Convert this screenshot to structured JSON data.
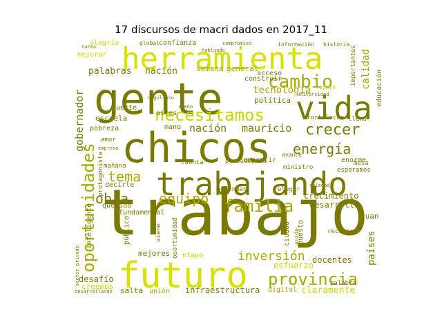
{
  "title": "17 discursos de macri dados en 2017_11",
  "palette": {
    "olive": "#7a7a00",
    "dark_olive": "#676700",
    "yellow": "#d7e000",
    "lime": "#c8d400",
    "mustard": "#a8a800"
  },
  "words": [
    {
      "text": "trabajo",
      "color": "olive"
    },
    {
      "text": "chicos",
      "color": "olive"
    },
    {
      "text": "gente",
      "color": "olive"
    },
    {
      "text": "herramienta",
      "color": "yellow"
    },
    {
      "text": "futuro",
      "color": "yellow"
    },
    {
      "text": "trabajando",
      "color": "olive"
    },
    {
      "text": "vida",
      "color": "olive"
    },
    {
      "text": "necesitamos",
      "color": "lime"
    },
    {
      "text": "cambio",
      "color": "mustard"
    },
    {
      "text": "provincia",
      "color": "mustard"
    },
    {
      "text": "oportunidades",
      "color": "mustard"
    },
    {
      "text": "familia",
      "color": "mustard"
    },
    {
      "text": "crecer",
      "color": "olive"
    },
    {
      "text": "energía",
      "color": "olive"
    },
    {
      "text": "equipo",
      "color": "mustard"
    },
    {
      "text": "obra",
      "color": "olive"
    },
    {
      "text": "tema",
      "color": "mustard"
    },
    {
      "text": "inversión",
      "color": "mustard"
    },
    {
      "text": "nación",
      "color": "olive"
    },
    {
      "text": "mauricio",
      "color": "olive"
    },
    {
      "text": "tecnología",
      "color": "mustard"
    },
    {
      "text": "gobernador",
      "color": "olive"
    },
    {
      "text": "palabras",
      "color": "olive"
    },
    {
      "text": "nación",
      "color": "olive"
    },
    {
      "text": "calidad",
      "color": "mustard"
    },
    {
      "text": "educación",
      "color": "olive"
    },
    {
      "text": "crecimiento",
      "color": "olive"
    },
    {
      "text": "desarrollo",
      "color": "olive"
    },
    {
      "text": "docentes",
      "color": "olive"
    },
    {
      "text": "países",
      "color": "olive"
    },
    {
      "text": "claramente",
      "color": "lime"
    },
    {
      "text": "esfuerzo",
      "color": "lime"
    },
    {
      "text": "infraestructura",
      "color": "olive"
    },
    {
      "text": "desafío",
      "color": "olive"
    },
    {
      "text": "creemos",
      "color": "lime"
    },
    {
      "text": "salta",
      "color": "olive"
    },
    {
      "text": "unión",
      "color": "mustard"
    },
    {
      "text": "digital",
      "color": "mustard"
    },
    {
      "text": "mejores",
      "color": "olive"
    },
    {
      "text": "etapa",
      "color": "lime"
    },
    {
      "text": "escuela",
      "color": "olive"
    },
    {
      "text": "pobreza",
      "color": "olive"
    },
    {
      "text": "aires",
      "color": "olive"
    },
    {
      "text": "suerte",
      "color": "olive"
    },
    {
      "text": "política",
      "color": "olive"
    },
    {
      "text": "semana",
      "color": "mustard"
    },
    {
      "text": "general",
      "color": "mustard"
    },
    {
      "text": "acceso",
      "color": "olive"
    },
    {
      "text": "construir",
      "color": "olive"
    },
    {
      "text": "alegría",
      "color": "lime"
    },
    {
      "text": "mejorar",
      "color": "lime"
    },
    {
      "text": "global",
      "color": "olive"
    },
    {
      "text": "confianza",
      "color": "olive"
    },
    {
      "text": "compartir",
      "color": "olive"
    },
    {
      "text": "ministro",
      "color": "olive"
    },
    {
      "text": "presidencia",
      "color": "olive"
    },
    {
      "text": "enorme",
      "color": "olive"
    },
    {
      "text": "esperamos",
      "color": "olive"
    },
    {
      "text": "mesa",
      "color": "olive"
    },
    {
      "text": "fortalecer",
      "color": "olive"
    },
    {
      "text": "lleno",
      "color": "olive"
    },
    {
      "text": "aprenden",
      "color": "olive"
    },
    {
      "text": "elegir",
      "color": "olive"
    },
    {
      "text": "querido",
      "color": "olive"
    },
    {
      "text": "fundamental",
      "color": "olive"
    },
    {
      "text": "mañana",
      "color": "olive"
    },
    {
      "text": "decirle",
      "color": "olive"
    },
    {
      "text": "cuenta",
      "color": "olive"
    },
    {
      "text": "puesto",
      "color": "olive"
    },
    {
      "text": "ciudad",
      "color": "olive"
    },
    {
      "text": "oportunidad",
      "color": "olive"
    },
    {
      "text": "público",
      "color": "olive"
    },
    {
      "text": "inteligente",
      "color": "olive"
    },
    {
      "text": "sector privado",
      "color": "olive"
    },
    {
      "text": "desarrollando",
      "color": "olive"
    },
    {
      "text": "palabra",
      "color": "olive"
    },
    {
      "text": "juan",
      "color": "olive"
    },
    {
      "text": "importantes",
      "color": "olive"
    },
    {
      "text": "historia",
      "color": "olive"
    },
    {
      "text": "información",
      "color": "olive"
    },
    {
      "text": "apoyo",
      "color": "lime"
    },
    {
      "text": "universidad",
      "color": "olive"
    },
    {
      "text": "amor",
      "color": "olive"
    },
    {
      "text": "empresa",
      "color": "olive"
    },
    {
      "text": "mano",
      "color": "olive"
    },
    {
      "text": "avance",
      "color": "olive"
    },
    {
      "text": "protagonista",
      "color": "olive"
    },
    {
      "text": "tarea",
      "color": "olive"
    },
    {
      "text": "hablando",
      "color": "olive"
    },
    {
      "text": "compromiso",
      "color": "olive"
    },
    {
      "text": "soledad",
      "color": "olive"
    },
    {
      "text": "viene",
      "color": "olive"
    },
    {
      "text": "unido",
      "color": "olive"
    },
    {
      "text": "orgulloso",
      "color": "olive"
    },
    {
      "text": "sueño",
      "color": "olive"
    },
    {
      "text": "recurso",
      "color": "olive"
    }
  ]
}
